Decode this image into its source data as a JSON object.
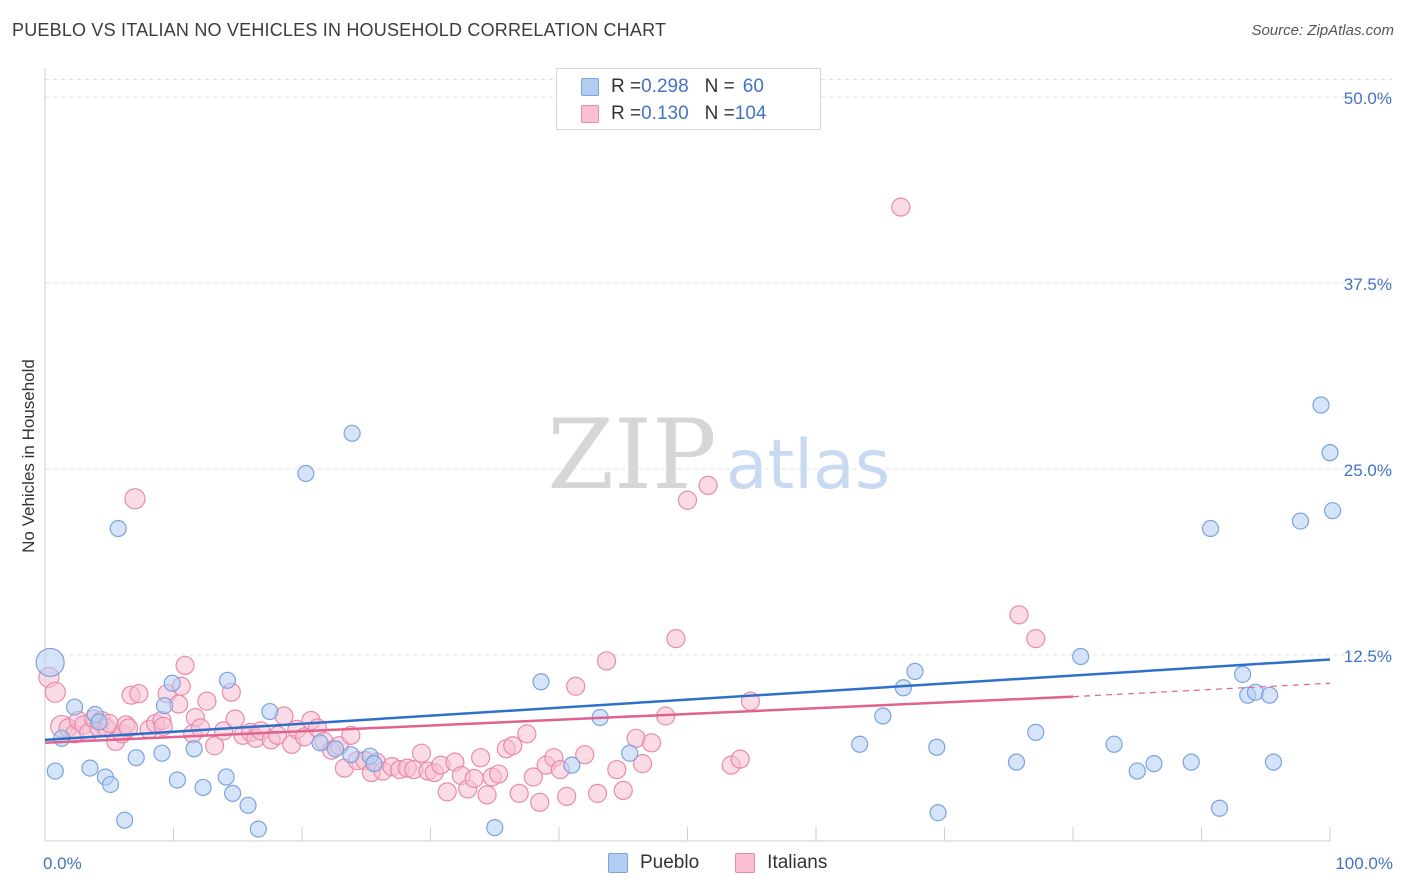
{
  "title": "PUEBLO VS ITALIAN NO VEHICLES IN HOUSEHOLD CORRELATION CHART",
  "source": "Source: ZipAtlas.com",
  "watermark": {
    "zip": "ZIP",
    "atlas": "atlas"
  },
  "colors": {
    "pueblo_fill": "#b3cdf2",
    "pueblo_stroke": "#7ba3dd",
    "pueblo_line": "#2f6fcc",
    "italians_fill": "#f8c0d2",
    "italians_stroke": "#e98aab",
    "italians_line": "#e0628f",
    "tick_label": "#4472c4"
  },
  "legend_top": {
    "rows": [
      {
        "r_label": "R = ",
        "r_value": "0.298",
        "n_label": "N = ",
        "n_value": "60"
      },
      {
        "r_label": "R = ",
        "r_value": "0.130",
        "n_label": "N = ",
        "n_value": "104"
      }
    ]
  },
  "bottom_legend": [
    "Pueblo",
    "Italians"
  ],
  "chart_data": {
    "type": "scatter",
    "title": "PUEBLO VS ITALIAN NO VEHICLES IN HOUSEHOLD CORRELATION CHART",
    "xlabel": "",
    "ylabel": "No Vehicles in Household",
    "xlim": [
      0,
      100
    ],
    "ylim": [
      0,
      50
    ],
    "x_tick_labels": [
      "0.0%",
      "100.0%"
    ],
    "y_ticks": [
      12.5,
      25,
      37.5,
      50
    ],
    "y_tick_labels": [
      "12.5%",
      "25.0%",
      "37.5%",
      "50.0%"
    ],
    "grid": "horizontal dashed",
    "legend_position": "top-center",
    "series": [
      {
        "name": "Pueblo",
        "r": 0.298,
        "n": 60,
        "trend": {
          "x": [
            0,
            100
          ],
          "y": [
            6.8,
            12.2
          ]
        },
        "points": [
          [
            0.4,
            12,
            14
          ],
          [
            0.8,
            4.7,
            8
          ],
          [
            1.3,
            6.9,
            8
          ],
          [
            2.3,
            9,
            8
          ],
          [
            3.5,
            4.9,
            8
          ],
          [
            3.9,
            8.5,
            8
          ],
          [
            4.2,
            8,
            8
          ],
          [
            4.7,
            4.3,
            8
          ],
          [
            5.1,
            3.8,
            8
          ],
          [
            5.7,
            21,
            8
          ],
          [
            6.2,
            1.4,
            8
          ],
          [
            7.1,
            5.6,
            8
          ],
          [
            9.1,
            5.9,
            8
          ],
          [
            9.3,
            9.1,
            8
          ],
          [
            9.9,
            10.6,
            8
          ],
          [
            10.3,
            4.1,
            8
          ],
          [
            11.6,
            6.2,
            8
          ],
          [
            12.3,
            3.6,
            8
          ],
          [
            14.1,
            4.3,
            8
          ],
          [
            14.2,
            10.8,
            8
          ],
          [
            14.6,
            3.2,
            8
          ],
          [
            15.8,
            2.4,
            8
          ],
          [
            16.6,
            0.8,
            8
          ],
          [
            17.5,
            8.7,
            8
          ],
          [
            20.3,
            24.7,
            8
          ],
          [
            21.4,
            6.6,
            8
          ],
          [
            22.6,
            6.2,
            8
          ],
          [
            23.8,
            5.8,
            8
          ],
          [
            23.9,
            27.4,
            8
          ],
          [
            25.3,
            5.7,
            8
          ],
          [
            25.6,
            5.2,
            8
          ],
          [
            35.0,
            0.9,
            8
          ],
          [
            38.6,
            10.7,
            8
          ],
          [
            41.0,
            5.1,
            8
          ],
          [
            43.2,
            8.3,
            8
          ],
          [
            45.5,
            5.9,
            8
          ],
          [
            63.4,
            6.5,
            8
          ],
          [
            65.2,
            8.4,
            8
          ],
          [
            66.8,
            10.3,
            8
          ],
          [
            67.7,
            11.4,
            8
          ],
          [
            69.5,
            1.9,
            8
          ],
          [
            69.4,
            6.3,
            8
          ],
          [
            75.6,
            5.3,
            8
          ],
          [
            77.1,
            7.3,
            8
          ],
          [
            80.6,
            12.4,
            8
          ],
          [
            83.2,
            6.5,
            8
          ],
          [
            85.0,
            4.7,
            8
          ],
          [
            86.3,
            5.2,
            8
          ],
          [
            89.2,
            5.3,
            8
          ],
          [
            90.7,
            21.0,
            8
          ],
          [
            91.4,
            2.2,
            8
          ],
          [
            93.2,
            11.2,
            8
          ],
          [
            93.6,
            9.8,
            8
          ],
          [
            94.2,
            10,
            8
          ],
          [
            95.3,
            9.8,
            8
          ],
          [
            95.6,
            5.3,
            8
          ],
          [
            97.7,
            21.5,
            8
          ],
          [
            99.3,
            29.3,
            8
          ],
          [
            100.0,
            26.1,
            8
          ],
          [
            100.2,
            22.2,
            8
          ]
        ]
      },
      {
        "name": "Italians",
        "r": 0.13,
        "n": 104,
        "trend": {
          "x": [
            0,
            80
          ],
          "y": [
            6.6,
            9.7
          ]
        },
        "trend_dashed": {
          "x": [
            80,
            100
          ],
          "y": [
            9.7,
            10.6
          ]
        },
        "points": [
          [
            0.3,
            11,
            10
          ],
          [
            0.8,
            10,
            10
          ],
          [
            1.3,
            7.7,
            11
          ],
          [
            1.8,
            7.6,
            9
          ],
          [
            2.3,
            7.2,
            9
          ],
          [
            2.6,
            8.1,
            9
          ],
          [
            3.0,
            7.8,
            9
          ],
          [
            3.4,
            7.3,
            9
          ],
          [
            3.8,
            8.2,
            9
          ],
          [
            4.2,
            7.6,
            9
          ],
          [
            4.4,
            8.1,
            9
          ],
          [
            4.8,
            7.6,
            9
          ],
          [
            5.0,
            7.9,
            9
          ],
          [
            5.5,
            6.7,
            9
          ],
          [
            6.0,
            7.2,
            9
          ],
          [
            6.3,
            7.8,
            9
          ],
          [
            6.5,
            7.6,
            9
          ],
          [
            6.7,
            9.8,
            9
          ],
          [
            7.0,
            23,
            10
          ],
          [
            7.3,
            9.9,
            9
          ],
          [
            8.1,
            7.5,
            9
          ],
          [
            8.6,
            7.9,
            9
          ],
          [
            9.1,
            8.1,
            9
          ],
          [
            9.2,
            7.7,
            9
          ],
          [
            9.5,
            9.9,
            9
          ],
          [
            10.4,
            9.2,
            9
          ],
          [
            10.6,
            10.4,
            9
          ],
          [
            10.9,
            11.8,
            9
          ],
          [
            11.5,
            7.2,
            9
          ],
          [
            11.7,
            8.3,
            9
          ],
          [
            12.1,
            7.6,
            9
          ],
          [
            12.6,
            9.4,
            9
          ],
          [
            13.2,
            6.4,
            9
          ],
          [
            13.9,
            7.4,
            9
          ],
          [
            14.5,
            10,
            9
          ],
          [
            14.8,
            8.2,
            9
          ],
          [
            15.4,
            7.1,
            9
          ],
          [
            16.0,
            7.3,
            9
          ],
          [
            16.4,
            6.9,
            9
          ],
          [
            16.8,
            7.4,
            9
          ],
          [
            17.6,
            6.8,
            9
          ],
          [
            18.1,
            7.1,
            9
          ],
          [
            18.6,
            8.4,
            9
          ],
          [
            19.2,
            6.5,
            9
          ],
          [
            19.6,
            7.5,
            9
          ],
          [
            20.2,
            7,
            9
          ],
          [
            20.7,
            8.1,
            9
          ],
          [
            21.2,
            7.6,
            9
          ],
          [
            21.7,
            6.7,
            9
          ],
          [
            22.3,
            6.1,
            9
          ],
          [
            22.9,
            6.4,
            9
          ],
          [
            23.3,
            4.9,
            9
          ],
          [
            23.8,
            7.1,
            9
          ],
          [
            24.3,
            5.4,
            9
          ],
          [
            24.9,
            5.4,
            9
          ],
          [
            25.4,
            4.6,
            9
          ],
          [
            25.8,
            5.3,
            9
          ],
          [
            26.3,
            4.7,
            9
          ],
          [
            27.0,
            5,
            9
          ],
          [
            27.6,
            4.8,
            9
          ],
          [
            28.2,
            4.9,
            9
          ],
          [
            28.7,
            4.8,
            9
          ],
          [
            29.3,
            5.9,
            9
          ],
          [
            29.8,
            4.7,
            9
          ],
          [
            30.3,
            4.6,
            9
          ],
          [
            30.8,
            5.1,
            9
          ],
          [
            31.3,
            3.3,
            9
          ],
          [
            31.9,
            5.3,
            9
          ],
          [
            32.4,
            4.4,
            9
          ],
          [
            32.9,
            3.5,
            9
          ],
          [
            33.4,
            4.2,
            9
          ],
          [
            33.9,
            5.6,
            9
          ],
          [
            34.4,
            3.1,
            9
          ],
          [
            34.8,
            4.3,
            9
          ],
          [
            35.3,
            4.5,
            9
          ],
          [
            35.9,
            6.2,
            9
          ],
          [
            36.4,
            6.4,
            9
          ],
          [
            36.9,
            3.2,
            9
          ],
          [
            37.5,
            7.2,
            9
          ],
          [
            38.0,
            4.3,
            9
          ],
          [
            38.5,
            2.6,
            9
          ],
          [
            39.0,
            5.1,
            9
          ],
          [
            39.6,
            5.6,
            9
          ],
          [
            40.1,
            4.8,
            9
          ],
          [
            40.6,
            3.0,
            9
          ],
          [
            41.3,
            10.4,
            9
          ],
          [
            42.0,
            5.8,
            9
          ],
          [
            43.0,
            3.2,
            9
          ],
          [
            43.7,
            12.1,
            9
          ],
          [
            44.5,
            4.8,
            9
          ],
          [
            45.0,
            3.4,
            9
          ],
          [
            46.0,
            6.9,
            9
          ],
          [
            46.5,
            5.2,
            9
          ],
          [
            47.2,
            6.6,
            9
          ],
          [
            48.3,
            8.4,
            9
          ],
          [
            49.1,
            13.6,
            9
          ],
          [
            50.0,
            22.9,
            9
          ],
          [
            51.6,
            23.9,
            9
          ],
          [
            53.4,
            5.1,
            9
          ],
          [
            54.1,
            5.5,
            9
          ],
          [
            54.9,
            9.4,
            9
          ],
          [
            66.6,
            42.6,
            9
          ],
          [
            75.8,
            15.2,
            9
          ],
          [
            77.1,
            13.6,
            9
          ]
        ]
      }
    ]
  }
}
